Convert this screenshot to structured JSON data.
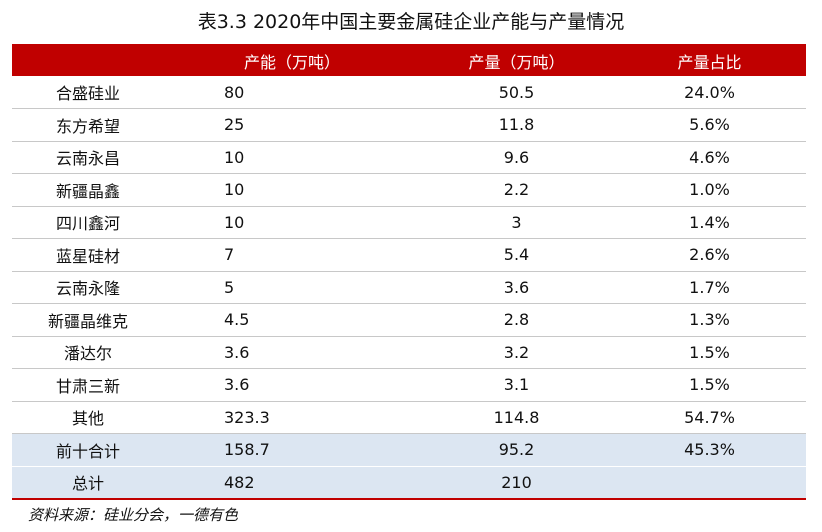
{
  "title": "表3.3 2020年中国主要金属硅企业产能与产量情况",
  "table": {
    "headers": [
      "",
      "产能（万吨）",
      "产量（万吨）",
      "产量占比"
    ],
    "rows": [
      {
        "company": "合盛硅业",
        "capacity": "80",
        "output": "50.5",
        "share": "24.0%"
      },
      {
        "company": "东方希望",
        "capacity": "25",
        "output": "11.8",
        "share": "5.6%"
      },
      {
        "company": "云南永昌",
        "capacity": "10",
        "output": "9.6",
        "share": "4.6%"
      },
      {
        "company": "新疆晶鑫",
        "capacity": "10",
        "output": "2.2",
        "share": "1.0%"
      },
      {
        "company": "四川鑫河",
        "capacity": "10",
        "output": "3",
        "share": "1.4%"
      },
      {
        "company": "蓝星硅材",
        "capacity": "7",
        "output": "5.4",
        "share": "2.6%"
      },
      {
        "company": "云南永隆",
        "capacity": "5",
        "output": "3.6",
        "share": "1.7%"
      },
      {
        "company": "新疆晶维克",
        "capacity": "4.5",
        "output": "2.8",
        "share": "1.3%"
      },
      {
        "company": "潘达尔",
        "capacity": "3.6",
        "output": "3.2",
        "share": "1.5%"
      },
      {
        "company": "甘肃三新",
        "capacity": "3.6",
        "output": "3.1",
        "share": "1.5%"
      },
      {
        "company": "其他",
        "capacity": "323.3",
        "output": "114.8",
        "share": "54.7%"
      }
    ],
    "subtotal": {
      "company": "前十合计",
      "capacity": "158.7",
      "output": "95.2",
      "share": "45.3%"
    },
    "total": {
      "company": "总计",
      "capacity": "482",
      "output": "210",
      "share": ""
    }
  },
  "source": "资料来源：硅业分会，一德有色",
  "colors": {
    "header_background": "#c00000",
    "header_text": "#ffffff",
    "summary_row_background": "#dce6f2"
  }
}
